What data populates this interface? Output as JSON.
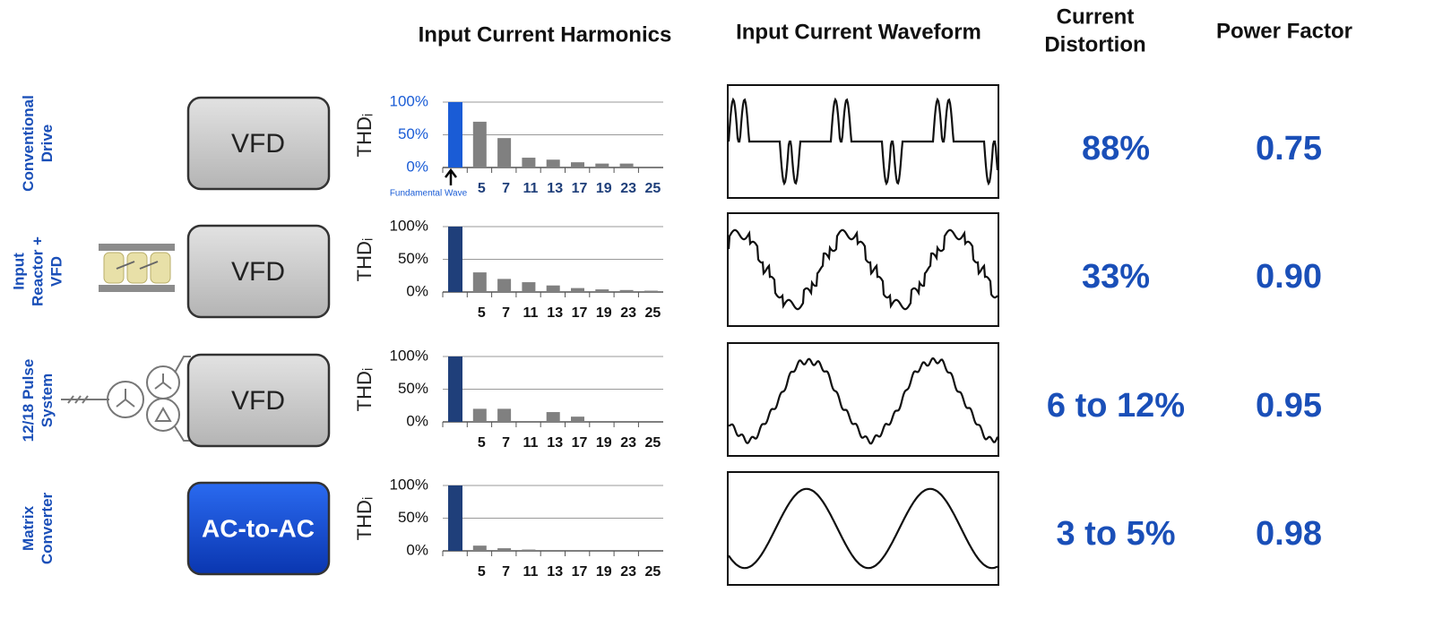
{
  "headers": {
    "harmonics": "Input Current Harmonics",
    "waveform": "Input Current Waveform",
    "distortion": [
      "Current",
      "Distortion"
    ],
    "power_factor": "Power Factor"
  },
  "axis_label": "THDᵢ",
  "fundamental_note": "Fundamental Wave",
  "harmonics_axis": {
    "categories": [
      null,
      "5",
      "7",
      "11",
      "13",
      "17",
      "19",
      "23",
      "25"
    ],
    "ylim": [
      0,
      100
    ],
    "yticks": [
      {
        "value": 0,
        "label": "0%"
      },
      {
        "value": 50,
        "label": "50%"
      },
      {
        "value": 100,
        "label": "100%"
      }
    ]
  },
  "rows": [
    {
      "label": [
        "Conventional",
        "Drive"
      ],
      "box": "VFD",
      "chart_data": {
        "type": "bar",
        "fundamental_color": "#1a5cd6",
        "color": "#808080",
        "values": [
          100,
          70,
          45,
          15,
          12,
          8,
          6,
          6,
          0
        ]
      },
      "distortion": "88%",
      "power_factor": "0.75"
    },
    {
      "label": [
        "Input",
        "Reactor +",
        "VFD"
      ],
      "box": "VFD",
      "chart_data": {
        "type": "bar",
        "fundamental_color": "#1f3f7a",
        "color": "#808080",
        "values": [
          100,
          30,
          20,
          15,
          10,
          6,
          4,
          3,
          2
        ]
      },
      "distortion": "33%",
      "power_factor": "0.90"
    },
    {
      "label": [
        "12/18 Pulse",
        "System"
      ],
      "box": "VFD",
      "chart_data": {
        "type": "bar",
        "fundamental_color": "#1f3f7a",
        "color": "#808080",
        "values": [
          100,
          20,
          20,
          0,
          15,
          8,
          0,
          0,
          0
        ]
      },
      "distortion": "6 to 12%",
      "power_factor": "0.95"
    },
    {
      "label": [
        "Matrix",
        "Converter"
      ],
      "box": "AC-to-AC",
      "chart_data": {
        "type": "bar",
        "fundamental_color": "#1f3f7a",
        "color": "#808080",
        "values": [
          100,
          8,
          4,
          2,
          0,
          0,
          0,
          0,
          0
        ]
      },
      "distortion": "3 to 5%",
      "power_factor": "0.98"
    }
  ]
}
